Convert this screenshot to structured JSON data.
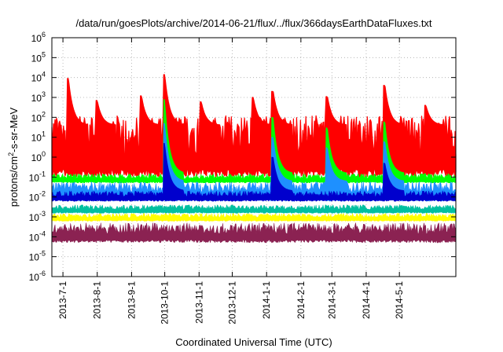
{
  "chart_data": {
    "type": "line",
    "title": "/data/run/goesPlots/archive/2014-06-21/flux/../flux/366daysEarthDataFluxes.txt",
    "xlabel": "Coordinated Universal Time (UTC)",
    "ylabel": "protons/cm2-s-sr-MeV",
    "yscale": "log",
    "ylim": [
      1e-06,
      1000000.0
    ],
    "xlim": [
      "2013-06-21",
      "2014-06-21"
    ],
    "grid": true,
    "x_ticks": [
      "2013-7-1",
      "2013-8-1",
      "2013-9-1",
      "2013-10-1",
      "2013-11-1",
      "2013-12-1",
      "2014-1-1",
      "2014-2-1",
      "2014-3-1",
      "2014-4-1",
      "2014-5-1"
    ],
    "y_ticks": [
      {
        "exp": -6
      },
      {
        "exp": -5
      },
      {
        "exp": -4
      },
      {
        "exp": -3
      },
      {
        "exp": -2
      },
      {
        "exp": -1
      },
      {
        "exp": 0
      },
      {
        "exp": 1
      },
      {
        "exp": 2
      },
      {
        "exp": 3
      },
      {
        "exp": 4
      },
      {
        "exp": 5
      },
      {
        "exp": 6
      }
    ],
    "series": [
      {
        "color": "#ff0000",
        "baseline": [
          0.5,
          40
        ],
        "spikes": [
          {
            "date": "2013-06-25",
            "value": 8
          },
          {
            "date": "2013-07-06",
            "value": 9000
          },
          {
            "date": "2013-08-01",
            "value": 700
          },
          {
            "date": "2013-09-10",
            "value": 1200
          },
          {
            "date": "2013-10-01",
            "value": 14000
          },
          {
            "date": "2013-11-03",
            "value": 600
          },
          {
            "date": "2013-12-20",
            "value": 1000
          },
          {
            "date": "2014-01-07",
            "value": 2000
          },
          {
            "date": "2014-02-25",
            "value": 1100
          },
          {
            "date": "2014-04-18",
            "value": 4000
          },
          {
            "date": "2014-05-25",
            "value": 400
          }
        ]
      },
      {
        "color": "#00ff00",
        "baseline": [
          0.05,
          0.15
        ],
        "spikes": [
          {
            "date": "2013-10-01",
            "value": 800
          },
          {
            "date": "2014-01-07",
            "value": 100
          },
          {
            "date": "2014-02-25",
            "value": 30
          },
          {
            "date": "2014-04-18",
            "value": 60
          }
        ]
      },
      {
        "color": "#1e90ff",
        "baseline": [
          0.006,
          0.06
        ],
        "spikes": [
          {
            "date": "2013-10-01",
            "value": 50
          },
          {
            "date": "2014-01-07",
            "value": 10
          },
          {
            "date": "2014-02-25",
            "value": 3
          },
          {
            "date": "2014-04-18",
            "value": 6
          }
        ]
      },
      {
        "color": "#0000cd",
        "baseline": [
          0.006,
          0.02
        ],
        "spikes": [
          {
            "date": "2013-10-01",
            "value": 5
          },
          {
            "date": "2014-01-07",
            "value": 1
          },
          {
            "date": "2014-04-18",
            "value": 0.5
          }
        ]
      },
      {
        "color": "#00c0a0",
        "baseline": [
          0.0015,
          0.004
        ],
        "spikes": []
      },
      {
        "color": "#ffff00",
        "baseline": [
          0.0006,
          0.0015
        ],
        "spikes": []
      },
      {
        "color": "#8b2252",
        "baseline": [
          5e-05,
          0.0005
        ],
        "spikes": []
      }
    ]
  }
}
